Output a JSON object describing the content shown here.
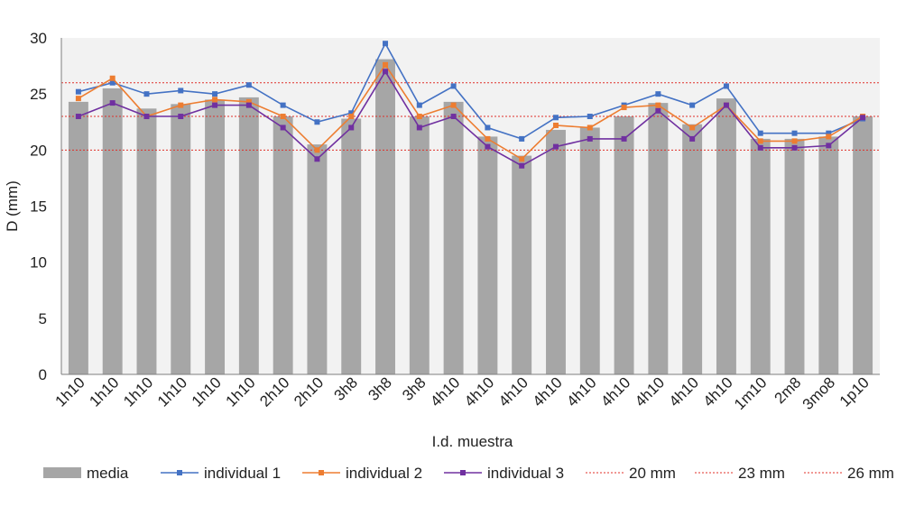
{
  "chart_data": {
    "type": "bar",
    "title": "",
    "xlabel": "I.d. muestra",
    "ylabel": "D (mm)",
    "ylim": [
      0,
      30
    ],
    "yticks": [
      0,
      5,
      10,
      15,
      20,
      25,
      30
    ],
    "grid": false,
    "legend_position": "bottom",
    "categories": [
      "1h10",
      "1h10",
      "1h10",
      "1h10",
      "1h10",
      "1h10",
      "2h10",
      "2h10",
      "3h8",
      "3h8",
      "3h8",
      "4h10",
      "4h10",
      "4h10",
      "4h10",
      "4h10",
      "4h10",
      "4h10",
      "4h10",
      "4h10",
      "1m10",
      "2m8",
      "3mo8",
      "1p10"
    ],
    "series": [
      {
        "name": "media",
        "kind": "bar",
        "color": "#a6a6a6",
        "values": [
          24.3,
          25.5,
          23.7,
          24.1,
          24.5,
          24.7,
          23.0,
          20.5,
          22.8,
          28.1,
          23.0,
          24.3,
          21.2,
          19.5,
          21.8,
          22.0,
          23.0,
          24.2,
          22.3,
          24.6,
          21.0,
          21.0,
          21.2,
          23.0
        ]
      },
      {
        "name": "individual 1",
        "kind": "line",
        "color": "#4472c4",
        "values": [
          25.2,
          26.0,
          25.0,
          25.3,
          25.0,
          25.8,
          24.0,
          22.5,
          23.3,
          29.5,
          24.0,
          25.7,
          22.0,
          21.0,
          22.9,
          23.0,
          24.0,
          25.0,
          24.0,
          25.7,
          21.5,
          21.5,
          21.5,
          22.8
        ]
      },
      {
        "name": "individual 2",
        "kind": "line",
        "color": "#ed7d31",
        "values": [
          24.6,
          26.4,
          23.0,
          24.0,
          24.5,
          24.3,
          23.0,
          20.0,
          23.0,
          27.6,
          23.0,
          24.0,
          21.0,
          19.2,
          22.2,
          22.0,
          23.8,
          24.0,
          22.0,
          24.0,
          20.8,
          20.8,
          21.2,
          23.0
        ]
      },
      {
        "name": "individual 3",
        "kind": "line",
        "color": "#7030a0",
        "values": [
          23.0,
          24.2,
          23.0,
          23.0,
          24.0,
          24.0,
          22.0,
          19.2,
          22.0,
          27.0,
          22.0,
          23.0,
          20.3,
          18.6,
          20.3,
          21.0,
          21.0,
          23.5,
          21.0,
          24.0,
          20.2,
          20.2,
          20.4,
          22.9
        ]
      }
    ],
    "reference_lines": [
      {
        "name": "20 mm",
        "value": 20,
        "color": "#e0302a"
      },
      {
        "name": "23 mm",
        "value": 23,
        "color": "#e0302a"
      },
      {
        "name": "26 mm",
        "value": 26,
        "color": "#e0302a"
      }
    ],
    "plot_background": "#f2f2f2"
  }
}
